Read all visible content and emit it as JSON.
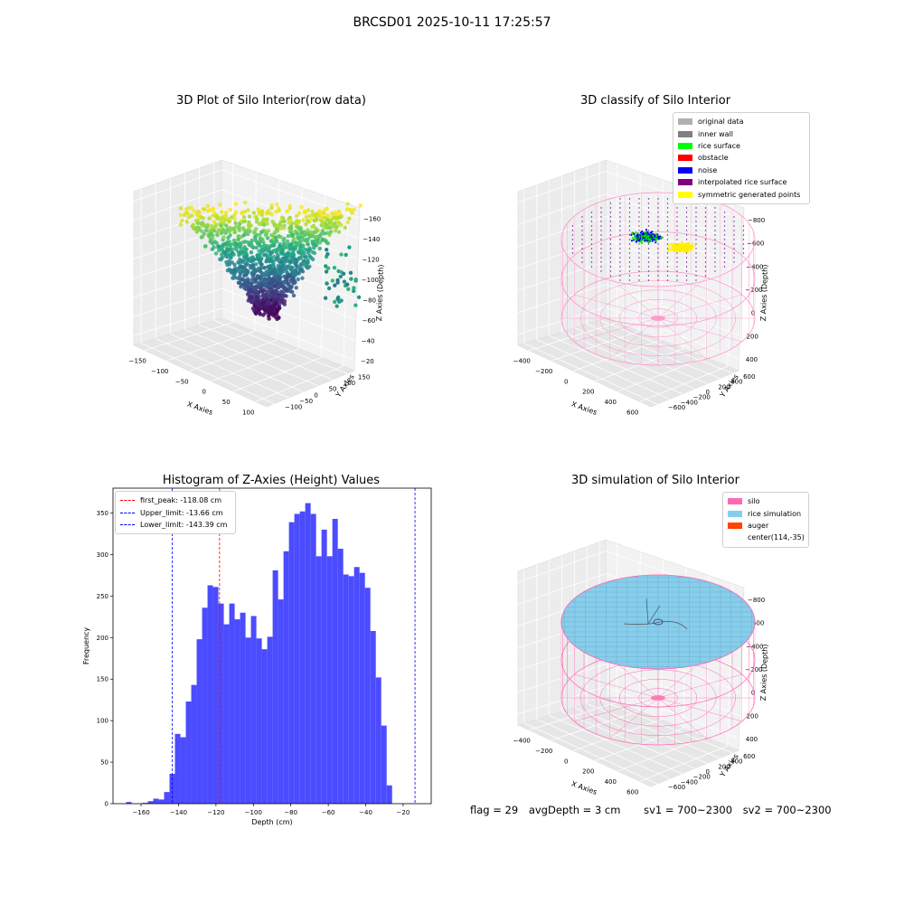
{
  "figure": {
    "title": "BRCSD01 2025-10-11 17:25:57",
    "footer": {
      "flag": "flag = 29",
      "avg_depth": "avgDepth = 3 cm",
      "sv1": "sv1 = 700~2300",
      "sv2": "sv2 = 700~2300"
    }
  },
  "chart_data": [
    {
      "type": "scatter",
      "projection": "3d",
      "title": "3D Plot of Silo Interior(row data)",
      "xlabel": "X Axies",
      "ylabel": "Y Axies",
      "zlabel": "Z Axies (Depth)",
      "x_ticks": [
        "−150",
        "−100",
        "−50",
        "0",
        "50",
        "100"
      ],
      "y_ticks": [
        "−100",
        "−50",
        "0",
        "50",
        "100",
        "150"
      ],
      "z_ticks": [
        "−160",
        "−140",
        "−120",
        "−100",
        "−80",
        "−60",
        "−40",
        "−20"
      ],
      "colormap": "viridis",
      "xlim": [
        -175,
        125
      ],
      "ylim": [
        -110,
        160
      ],
      "zlim": [
        -175,
        -10
      ]
    },
    {
      "type": "scatter",
      "projection": "3d",
      "title": "3D classify of Silo Interior",
      "xlabel": "X Axies",
      "ylabel": "Y Axies",
      "zlabel": "Z Axies (Depth)",
      "x_ticks": [
        "−400",
        "−200",
        "0",
        "200",
        "400",
        "600"
      ],
      "y_ticks": [
        "−600",
        "−400",
        "−200",
        "0",
        "200",
        "400",
        "600"
      ],
      "z_ticks": [
        "−800",
        "−600",
        "−400",
        "−200",
        "0",
        "200",
        "400"
      ],
      "legend": [
        {
          "name": "original data",
          "color": "#b0b0b0"
        },
        {
          "name": "inner wall",
          "color": "#808080"
        },
        {
          "name": "rice surface",
          "color": "#00ff00"
        },
        {
          "name": "obstacle",
          "color": "#ff0000"
        },
        {
          "name": "noise",
          "color": "#0000ff"
        },
        {
          "name": "interpolated rice surface",
          "color": "#800080"
        },
        {
          "name": "symmetric generated points",
          "color": "#ffff00"
        }
      ],
      "legend_position": "top-right"
    },
    {
      "type": "bar",
      "title": "Histogram of Z-Axies (Height) Values",
      "xlabel": "Depth (cm)",
      "ylabel": "Frequency",
      "xlim": [
        -175,
        -5
      ],
      "ylim": [
        0,
        380
      ],
      "x_ticks": [
        -160,
        -140,
        -120,
        -100,
        -80,
        -60,
        -40,
        -20
      ],
      "y_ticks": [
        0,
        50,
        100,
        150,
        200,
        250,
        300,
        350
      ],
      "bin_start": -168,
      "bin_width": 2.9,
      "values": [
        2,
        0,
        0,
        1,
        3,
        6,
        5,
        14,
        36,
        84,
        80,
        123,
        143,
        198,
        236,
        263,
        261,
        241,
        216,
        241,
        222,
        230,
        200,
        226,
        199,
        186,
        201,
        281,
        246,
        304,
        339,
        349,
        352,
        362,
        349,
        298,
        330,
        298,
        343,
        307,
        276,
        274,
        285,
        278,
        260,
        208,
        152,
        94,
        22
      ],
      "bar_color": "#4b4bff",
      "lines": [
        {
          "label": "first_peak: -118.08 cm",
          "x": -118.08,
          "color": "#ff0000"
        },
        {
          "label": "Upper_limit: -13.66 cm",
          "x": -13.66,
          "color": "#0000ff"
        },
        {
          "label": "Lower_limit: -143.39 cm",
          "x": -143.39,
          "color": "#0000ff"
        }
      ],
      "legend_position": "top-left"
    },
    {
      "type": "scatter",
      "projection": "3d",
      "title": "3D simulation of Silo Interior",
      "xlabel": "X Axies",
      "ylabel": "Y Axies",
      "zlabel": "Z Axies (Depth)",
      "x_ticks": [
        "−400",
        "−200",
        "0",
        "200",
        "400",
        "600"
      ],
      "y_ticks": [
        "−600",
        "−400",
        "−200",
        "0",
        "200",
        "400",
        "600"
      ],
      "z_ticks": [
        "−800",
        "−600",
        "−400",
        "−200",
        "0",
        "200",
        "400"
      ],
      "legend": [
        {
          "name": "silo",
          "color": "#ff69b4"
        },
        {
          "name": "rice simulation",
          "color": "#87ceeb"
        },
        {
          "name": "auger",
          "color": "#ff4500"
        },
        {
          "name": "center(114,-35)",
          "color": ""
        }
      ],
      "legend_position": "top-right"
    }
  ]
}
